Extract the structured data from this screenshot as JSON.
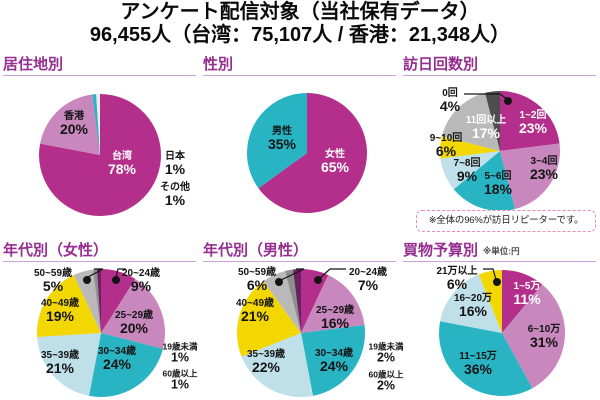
{
  "title": {
    "line1": "アンケート配信対象（当社保有データ）",
    "line2": "96,455人（台湾：75,107人 / 香港：21,348人）"
  },
  "palette": {
    "header_purple": "#952e90",
    "rule_purple": "#c9a2d8",
    "note_border_pink": "#ee86bb",
    "magenta": "#b42f8c",
    "mauve": "#c887bd",
    "teal": "#29b4c4",
    "pale_blue": "#bfdfe9",
    "yellow": "#f3d703",
    "light_gray": "#b9b9b9",
    "mid_gray": "#8e8e8e",
    "dark_gray": "#4d4d4d",
    "dark_maroon": "#6a2061",
    "near_white": "#ededed"
  },
  "chart_data": [
    {
      "type": "pie",
      "title": "居住地別",
      "layout": {
        "center": [
          100,
          105
        ],
        "radius": 61
      },
      "slices": [
        {
          "label": "台湾",
          "value": 78,
          "color": "#b42f8c",
          "white": true,
          "lp": [
            122,
            114
          ]
        },
        {
          "label": "香港",
          "value": 20,
          "color": "#c887bd",
          "lp": [
            74,
            74
          ]
        },
        {
          "label": "日本",
          "value": 1,
          "color": "#29b4c4",
          "lp": [
            175,
            114
          ]
        },
        {
          "label": "その他",
          "value": 1,
          "color": "#ededed",
          "lp": [
            175,
            145
          ]
        }
      ]
    },
    {
      "type": "pie",
      "title": "性別",
      "layout": {
        "center": [
          107,
          103
        ],
        "radius": 60
      },
      "slices": [
        {
          "label": "女性",
          "value": 65,
          "color": "#b42f8c",
          "white": true,
          "lp": [
            135,
            112
          ]
        },
        {
          "label": "男性",
          "value": 35,
          "color": "#29b4c4",
          "lp": [
            82,
            89
          ]
        }
      ]
    },
    {
      "type": "pie",
      "title": "訪日回数別",
      "note": "※全体の96%が訪日リピーターです。",
      "layout": {
        "center": [
          100,
          101
        ],
        "radius": 60
      },
      "slices": [
        {
          "label": "1~2回",
          "value": 23,
          "color": "#b42f8c",
          "white": true,
          "lp": [
            133,
            73
          ]
        },
        {
          "label": "3~4回",
          "value": 23,
          "color": "#c887bd",
          "lp": [
            144,
            119
          ]
        },
        {
          "label": "5~6回",
          "value": 18,
          "color": "#29b4c4",
          "lp": [
            98,
            134
          ]
        },
        {
          "label": "7~8回",
          "value": 9,
          "color": "#bfdfe9",
          "lp": [
            67,
            121
          ]
        },
        {
          "label": "9~10回",
          "value": 6,
          "color": "#f3d703",
          "lp": [
            46,
            96
          ]
        },
        {
          "label": "11回以上",
          "value": 17,
          "color": "#b9b9b9",
          "white": true,
          "lp": [
            86,
            78
          ]
        },
        {
          "label": "0回",
          "value": 4,
          "color": "#4d4d4d",
          "lp": [
            50,
            51
          ],
          "pointer": {
            "line": [
              [
                64,
                44
              ],
              [
                100,
                44
              ],
              [
                107,
                49
              ]
            ],
            "dot": [
              108,
              51
            ]
          }
        }
      ]
    },
    {
      "type": "pie",
      "title": "年代別（女性）",
      "layout": {
        "center": [
          101,
          97
        ],
        "radius": 64
      },
      "slices": [
        {
          "label": "20~24歳",
          "value": 9,
          "color": "#b42f8c",
          "lp": [
            141,
            45
          ],
          "pointer": {
            "line": [
              [
                126,
                33
              ],
              [
                118,
                33
              ],
              [
                116,
                41
              ]
            ],
            "dot": [
              116,
              44
            ]
          }
        },
        {
          "label": "25~29歳",
          "value": 20,
          "color": "#c887bd",
          "lp": [
            134,
            87
          ]
        },
        {
          "label": "30~34歳",
          "value": 24,
          "color": "#29b4c4",
          "lp": [
            117,
            123
          ]
        },
        {
          "label": "35~39歳",
          "value": 21,
          "color": "#bfdfe9",
          "lp": [
            60,
            127
          ]
        },
        {
          "label": "40~49歳",
          "value": 19,
          "color": "#f3d703",
          "lp": [
            60,
            75
          ]
        },
        {
          "label": "50~59歳",
          "value": 5,
          "color": "#b9b9b9",
          "lp": [
            53,
            45
          ],
          "pointer": {
            "line": [
              [
                94,
                33
              ],
              [
                103,
                33
              ],
              [
                88,
                41
              ]
            ],
            "dot": [
              87,
              44
            ]
          }
        },
        {
          "label": "60歳以上",
          "value": 1,
          "color": "#8e8e8e",
          "small": true,
          "lp": [
            180,
            144
          ]
        },
        {
          "label": "19歳未満",
          "value": 1,
          "color": "#6a2061",
          "small": true,
          "lp": [
            180,
            117
          ]
        }
      ]
    },
    {
      "type": "pie",
      "title": "年代別（男性）",
      "layout": {
        "center": [
          101,
          97
        ],
        "radius": 64
      },
      "slices": [
        {
          "label": "20~24歳",
          "value": 7,
          "color": "#b42f8c",
          "lp": [
            168,
            44
          ],
          "pointer": {
            "line": [
              [
                146,
                33
              ],
              [
                130,
                33
              ],
              [
                120,
                42
              ]
            ],
            "dot": [
              118,
              44
            ]
          }
        },
        {
          "label": "25~29歳",
          "value": 16,
          "color": "#c887bd",
          "lp": [
            135,
            82
          ]
        },
        {
          "label": "30~34歳",
          "value": 24,
          "color": "#29b4c4",
          "lp": [
            134,
            125
          ]
        },
        {
          "label": "35~39歳",
          "value": 22,
          "color": "#bfdfe9",
          "lp": [
            66,
            126
          ]
        },
        {
          "label": "40~49歳",
          "value": 21,
          "color": "#f3d703",
          "lp": [
            55,
            75
          ]
        },
        {
          "label": "50~59歳",
          "value": 6,
          "color": "#b9b9b9",
          "lp": [
            57,
            44
          ],
          "pointer": {
            "line": [
              [
                96,
                33
              ],
              [
                104,
                33
              ],
              [
                81,
                44
              ]
            ],
            "dot": [
              79,
              46
            ]
          }
        },
        {
          "label": "60歳以上",
          "value": 2,
          "color": "#8e8e8e",
          "small": true,
          "lp": [
            186,
            145
          ]
        },
        {
          "label": "19歳未満",
          "value": 2,
          "color": "#6a2061",
          "small": true,
          "lp": [
            186,
            117
          ]
        }
      ]
    },
    {
      "type": "pie",
      "title": "買物予算別",
      "unit": "※単位:円",
      "layout": {
        "center": [
          102,
          97
        ],
        "radius": 63
      },
      "slices": [
        {
          "label": "1~5万",
          "value": 11,
          "color": "#b42f8c",
          "white": true,
          "lp": [
            127,
            58
          ]
        },
        {
          "label": "6~10万",
          "value": 31,
          "color": "#c887bd",
          "lp": [
            144,
            101
          ]
        },
        {
          "label": "11~15万",
          "value": 36,
          "color": "#29b4c4",
          "lp": [
            78,
            128
          ]
        },
        {
          "label": "16~20万",
          "value": 16,
          "color": "#bfdfe9",
          "lp": [
            73,
            70
          ]
        },
        {
          "label": "21万以上",
          "value": 6,
          "color": "#f3d703",
          "lp": [
            57,
            43
          ],
          "pointer": {
            "line": [
              [
                83,
                33
              ],
              [
                93,
                33
              ],
              [
                96,
                44
              ]
            ],
            "dot": [
              97,
              46
            ]
          }
        }
      ]
    }
  ]
}
